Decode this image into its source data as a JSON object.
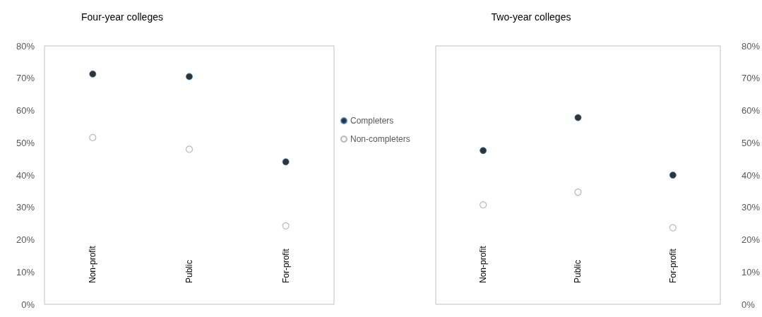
{
  "chart_data": [
    {
      "type": "scatter",
      "title": "Four-year colleges",
      "categories": [
        "Non-profit",
        "Public",
        "For-profit"
      ],
      "series": [
        {
          "name": "Completers",
          "color": "#000000",
          "values": [
            71.3,
            70.5,
            44.1
          ]
        },
        {
          "name": "Non-completers",
          "color": "#a6a6a6",
          "values": [
            51.6,
            48.0,
            24.3
          ]
        }
      ],
      "ylim": [
        0,
        80
      ],
      "yticks": [
        {
          "value": 0,
          "label": "0%"
        },
        {
          "value": 10,
          "label": "10%"
        },
        {
          "value": 20,
          "label": "20%"
        },
        {
          "value": 30,
          "label": "30%"
        },
        {
          "value": 40,
          "label": "40%"
        },
        {
          "value": 50,
          "label": "50%"
        },
        {
          "value": 60,
          "label": "60%"
        },
        {
          "value": 70,
          "label": "70%"
        },
        {
          "value": 80,
          "label": "80%"
        }
      ],
      "marker": "circle",
      "legend": "right"
    },
    {
      "type": "scatter",
      "title": "Two-year colleges",
      "categories": [
        "Non-profit",
        "Public",
        "For-profit"
      ],
      "series": [
        {
          "color": "#000000",
          "values": [
            47.6,
            57.8,
            40.0
          ],
          "axis": "y2"
        },
        {
          "color": "#a6a6a6",
          "values": [
            30.8,
            34.7,
            23.7
          ],
          "axis": "y2"
        }
      ],
      "y2lim": [
        0,
        80
      ],
      "y2ticks": [
        {
          "value": 0,
          "label": "0%"
        },
        {
          "value": 10,
          "label": "10%"
        },
        {
          "value": 20,
          "label": "20%"
        },
        {
          "value": 30,
          "label": "30%"
        },
        {
          "value": 40,
          "label": "40%"
        },
        {
          "value": 50,
          "label": "50%"
        },
        {
          "value": 60,
          "label": "60%"
        },
        {
          "value": 70,
          "label": "70%"
        },
        {
          "value": 80,
          "label": "80%"
        }
      ],
      "marker": "circle"
    }
  ]
}
